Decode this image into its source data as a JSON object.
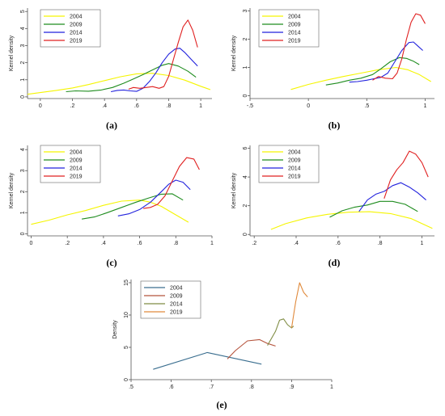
{
  "chart_data": [
    {
      "type": "line",
      "panel_label": "(a)",
      "ylabel": "Kernel density",
      "xlim": [
        -0.08,
        1.07
      ],
      "ylim": [
        -0.1,
        5.2
      ],
      "xticks": [
        0,
        0.2,
        0.4,
        0.6,
        0.8,
        1
      ],
      "xtick_labels": [
        "0",
        ".2",
        ".4",
        ".6",
        ".8",
        "1"
      ],
      "yticks": [
        0,
        1,
        2,
        3,
        4,
        5
      ],
      "ytick_labels": [
        "0",
        "1",
        "2",
        "3",
        "4",
        "5"
      ],
      "grid": false,
      "legend_position": "top-left",
      "series": [
        {
          "name": "2004",
          "color": "#f5f500",
          "x": [
            -0.08,
            0.0,
            0.1,
            0.2,
            0.3,
            0.4,
            0.5,
            0.6,
            0.7,
            0.8,
            0.9,
            1.0,
            1.06
          ],
          "y": [
            0.15,
            0.25,
            0.38,
            0.52,
            0.72,
            0.95,
            1.18,
            1.35,
            1.38,
            1.25,
            0.98,
            0.62,
            0.42
          ]
        },
        {
          "name": "2009",
          "color": "#1e8c1e",
          "x": [
            0.16,
            0.22,
            0.3,
            0.38,
            0.45,
            0.52,
            0.58,
            0.64,
            0.7,
            0.76,
            0.8,
            0.86,
            0.92,
            0.97
          ],
          "y": [
            0.3,
            0.35,
            0.33,
            0.4,
            0.55,
            0.8,
            1.05,
            1.3,
            1.58,
            1.85,
            1.95,
            1.8,
            1.5,
            1.15
          ]
        },
        {
          "name": "2014",
          "color": "#2222dd",
          "x": [
            0.44,
            0.48,
            0.52,
            0.56,
            0.6,
            0.64,
            0.68,
            0.72,
            0.76,
            0.8,
            0.84,
            0.87,
            0.9,
            0.94,
            0.98
          ],
          "y": [
            0.3,
            0.38,
            0.4,
            0.35,
            0.32,
            0.5,
            0.9,
            1.4,
            2.0,
            2.5,
            2.8,
            2.85,
            2.6,
            2.2,
            1.8
          ]
        },
        {
          "name": "2019",
          "color": "#e02020",
          "x": [
            0.55,
            0.58,
            0.62,
            0.66,
            0.7,
            0.74,
            0.77,
            0.8,
            0.83,
            0.86,
            0.89,
            0.92,
            0.95,
            0.98
          ],
          "y": [
            0.45,
            0.55,
            0.5,
            0.55,
            0.6,
            0.5,
            0.6,
            1.2,
            2.2,
            3.2,
            4.1,
            4.5,
            3.9,
            2.9
          ]
        }
      ]
    },
    {
      "type": "line",
      "panel_label": "(b)",
      "ylabel": "Kernel density",
      "xlim": [
        -0.5,
        1.08
      ],
      "ylim": [
        -0.1,
        3.1
      ],
      "xticks": [
        -0.5,
        0,
        0.5,
        1
      ],
      "xtick_labels": [
        "-.5",
        "0",
        ".5",
        "1"
      ],
      "yticks": [
        0,
        1,
        2,
        3
      ],
      "ytick_labels": [
        "0",
        "1",
        "2",
        "3"
      ],
      "grid": false,
      "legend_position": "top-left",
      "series": [
        {
          "name": "2004",
          "color": "#f5f500",
          "x": [
            -0.15,
            0.0,
            0.15,
            0.3,
            0.45,
            0.6,
            0.75,
            0.85,
            0.95,
            1.05
          ],
          "y": [
            0.22,
            0.4,
            0.55,
            0.68,
            0.8,
            0.92,
            1.0,
            0.92,
            0.75,
            0.5
          ]
        },
        {
          "name": "2009",
          "color": "#1e8c1e",
          "x": [
            0.15,
            0.25,
            0.35,
            0.45,
            0.55,
            0.62,
            0.7,
            0.78,
            0.84,
            0.9,
            0.95
          ],
          "y": [
            0.38,
            0.45,
            0.55,
            0.62,
            0.75,
            0.95,
            1.2,
            1.35,
            1.32,
            1.22,
            1.1
          ]
        },
        {
          "name": "2014",
          "color": "#2222dd",
          "x": [
            0.35,
            0.42,
            0.5,
            0.56,
            0.62,
            0.68,
            0.74,
            0.8,
            0.86,
            0.9,
            0.94,
            0.98
          ],
          "y": [
            0.48,
            0.5,
            0.55,
            0.6,
            0.65,
            0.8,
            1.2,
            1.6,
            1.88,
            1.9,
            1.75,
            1.6
          ]
        },
        {
          "name": "2019",
          "color": "#e02020",
          "x": [
            0.55,
            0.6,
            0.66,
            0.72,
            0.76,
            0.8,
            0.84,
            0.88,
            0.92,
            0.96,
            1.0
          ],
          "y": [
            0.55,
            0.68,
            0.62,
            0.6,
            0.8,
            1.3,
            2.0,
            2.6,
            2.9,
            2.85,
            2.55
          ]
        }
      ]
    },
    {
      "type": "line",
      "panel_label": "(c)",
      "ylabel": "Kernel density",
      "xlim": [
        -0.02,
        1.0
      ],
      "ylim": [
        -0.1,
        4.2
      ],
      "xticks": [
        0,
        0.2,
        0.4,
        0.6,
        0.8,
        1
      ],
      "xtick_labels": [
        "0",
        ".2",
        ".4",
        ".6",
        ".8",
        "1"
      ],
      "yticks": [
        0,
        1,
        2,
        3,
        4
      ],
      "ytick_labels": [
        "0",
        "1",
        "2",
        "3",
        "4"
      ],
      "grid": false,
      "legend_position": "top-left",
      "series": [
        {
          "name": "2004",
          "color": "#f5f500",
          "x": [
            0.0,
            0.1,
            0.2,
            0.3,
            0.4,
            0.5,
            0.6,
            0.66,
            0.72,
            0.8,
            0.87
          ],
          "y": [
            0.45,
            0.65,
            0.9,
            1.1,
            1.35,
            1.55,
            1.6,
            1.5,
            1.3,
            0.9,
            0.55
          ]
        },
        {
          "name": "2009",
          "color": "#1e8c1e",
          "x": [
            0.28,
            0.35,
            0.42,
            0.5,
            0.58,
            0.65,
            0.72,
            0.78,
            0.84
          ],
          "y": [
            0.7,
            0.8,
            1.0,
            1.25,
            1.5,
            1.7,
            1.88,
            1.9,
            1.6
          ]
        },
        {
          "name": "2014",
          "color": "#2222dd",
          "x": [
            0.48,
            0.54,
            0.6,
            0.66,
            0.72,
            0.76,
            0.8,
            0.84,
            0.88
          ],
          "y": [
            0.85,
            0.95,
            1.15,
            1.5,
            2.0,
            2.35,
            2.55,
            2.45,
            2.1
          ]
        },
        {
          "name": "2019",
          "color": "#e02020",
          "x": [
            0.62,
            0.66,
            0.7,
            0.74,
            0.78,
            0.82,
            0.86,
            0.9,
            0.93
          ],
          "y": [
            1.2,
            1.25,
            1.4,
            1.8,
            2.5,
            3.2,
            3.62,
            3.55,
            3.05
          ]
        }
      ]
    },
    {
      "type": "line",
      "panel_label": "(d)",
      "ylabel": "Kernel density",
      "xlim": [
        0.18,
        1.06
      ],
      "ylim": [
        -0.1,
        6.2
      ],
      "xticks": [
        0.2,
        0.4,
        0.6,
        0.8,
        1
      ],
      "xtick_labels": [
        ".2",
        ".4",
        ".6",
        ".8",
        "1"
      ],
      "yticks": [
        0,
        2,
        4,
        6
      ],
      "ytick_labels": [
        "0",
        "2",
        "4",
        "6"
      ],
      "grid": false,
      "legend_position": "top-left",
      "series": [
        {
          "name": "2004",
          "color": "#f5f500",
          "x": [
            0.28,
            0.35,
            0.45,
            0.55,
            0.65,
            0.75,
            0.85,
            0.95,
            1.05
          ],
          "y": [
            0.35,
            0.75,
            1.15,
            1.4,
            1.55,
            1.58,
            1.45,
            1.1,
            0.42
          ]
        },
        {
          "name": "2009",
          "color": "#1e8c1e",
          "x": [
            0.56,
            0.62,
            0.68,
            0.74,
            0.8,
            0.86,
            0.92,
            0.98
          ],
          "y": [
            1.2,
            1.65,
            1.9,
            2.05,
            2.3,
            2.3,
            2.1,
            1.6
          ]
        },
        {
          "name": "2014",
          "color": "#2222dd",
          "x": [
            0.7,
            0.74,
            0.78,
            0.82,
            0.86,
            0.9,
            0.94,
            0.98,
            1.02
          ],
          "y": [
            1.6,
            2.4,
            2.8,
            3.0,
            3.4,
            3.6,
            3.3,
            2.9,
            2.4
          ]
        },
        {
          "name": "2019",
          "color": "#e02020",
          "x": [
            0.82,
            0.85,
            0.88,
            0.91,
            0.94,
            0.97,
            1.0,
            1.03
          ],
          "y": [
            2.5,
            3.8,
            4.5,
            5.0,
            5.8,
            5.6,
            5.0,
            4.0
          ]
        }
      ]
    },
    {
      "type": "line",
      "panel_label": "(e)",
      "ylabel": "Density",
      "xlim": [
        0.5,
        1.0
      ],
      "ylim": [
        0,
        15.5
      ],
      "xticks": [
        0.5,
        0.6,
        0.7,
        0.8,
        0.9,
        1
      ],
      "xtick_labels": [
        ".5",
        ".6",
        ".7",
        ".8",
        ".9",
        "1"
      ],
      "yticks": [
        0,
        5,
        10,
        15
      ],
      "ytick_labels": [
        "0",
        "5",
        "10",
        "15"
      ],
      "grid": false,
      "legend_position": "top-left",
      "series": [
        {
          "name": "2004",
          "color": "#3a6e8f",
          "x": [
            0.555,
            0.69,
            0.825
          ],
          "y": [
            1.6,
            4.2,
            2.4
          ]
        },
        {
          "name": "2009",
          "color": "#b5533c",
          "x": [
            0.74,
            0.76,
            0.79,
            0.82,
            0.84,
            0.86
          ],
          "y": [
            3.2,
            4.5,
            6.0,
            6.2,
            5.6,
            5.2
          ]
        },
        {
          "name": "2014",
          "color": "#7f8c43",
          "x": [
            0.84,
            0.86,
            0.87,
            0.88,
            0.89,
            0.9,
            0.905
          ],
          "y": [
            5.3,
            7.5,
            9.2,
            9.4,
            8.5,
            8.0,
            8.3
          ]
        },
        {
          "name": "2019",
          "color": "#e08a3c",
          "x": [
            0.9,
            0.91,
            0.92,
            0.93,
            0.94
          ],
          "y": [
            8.0,
            12.0,
            15.0,
            13.5,
            12.8
          ]
        }
      ]
    }
  ]
}
